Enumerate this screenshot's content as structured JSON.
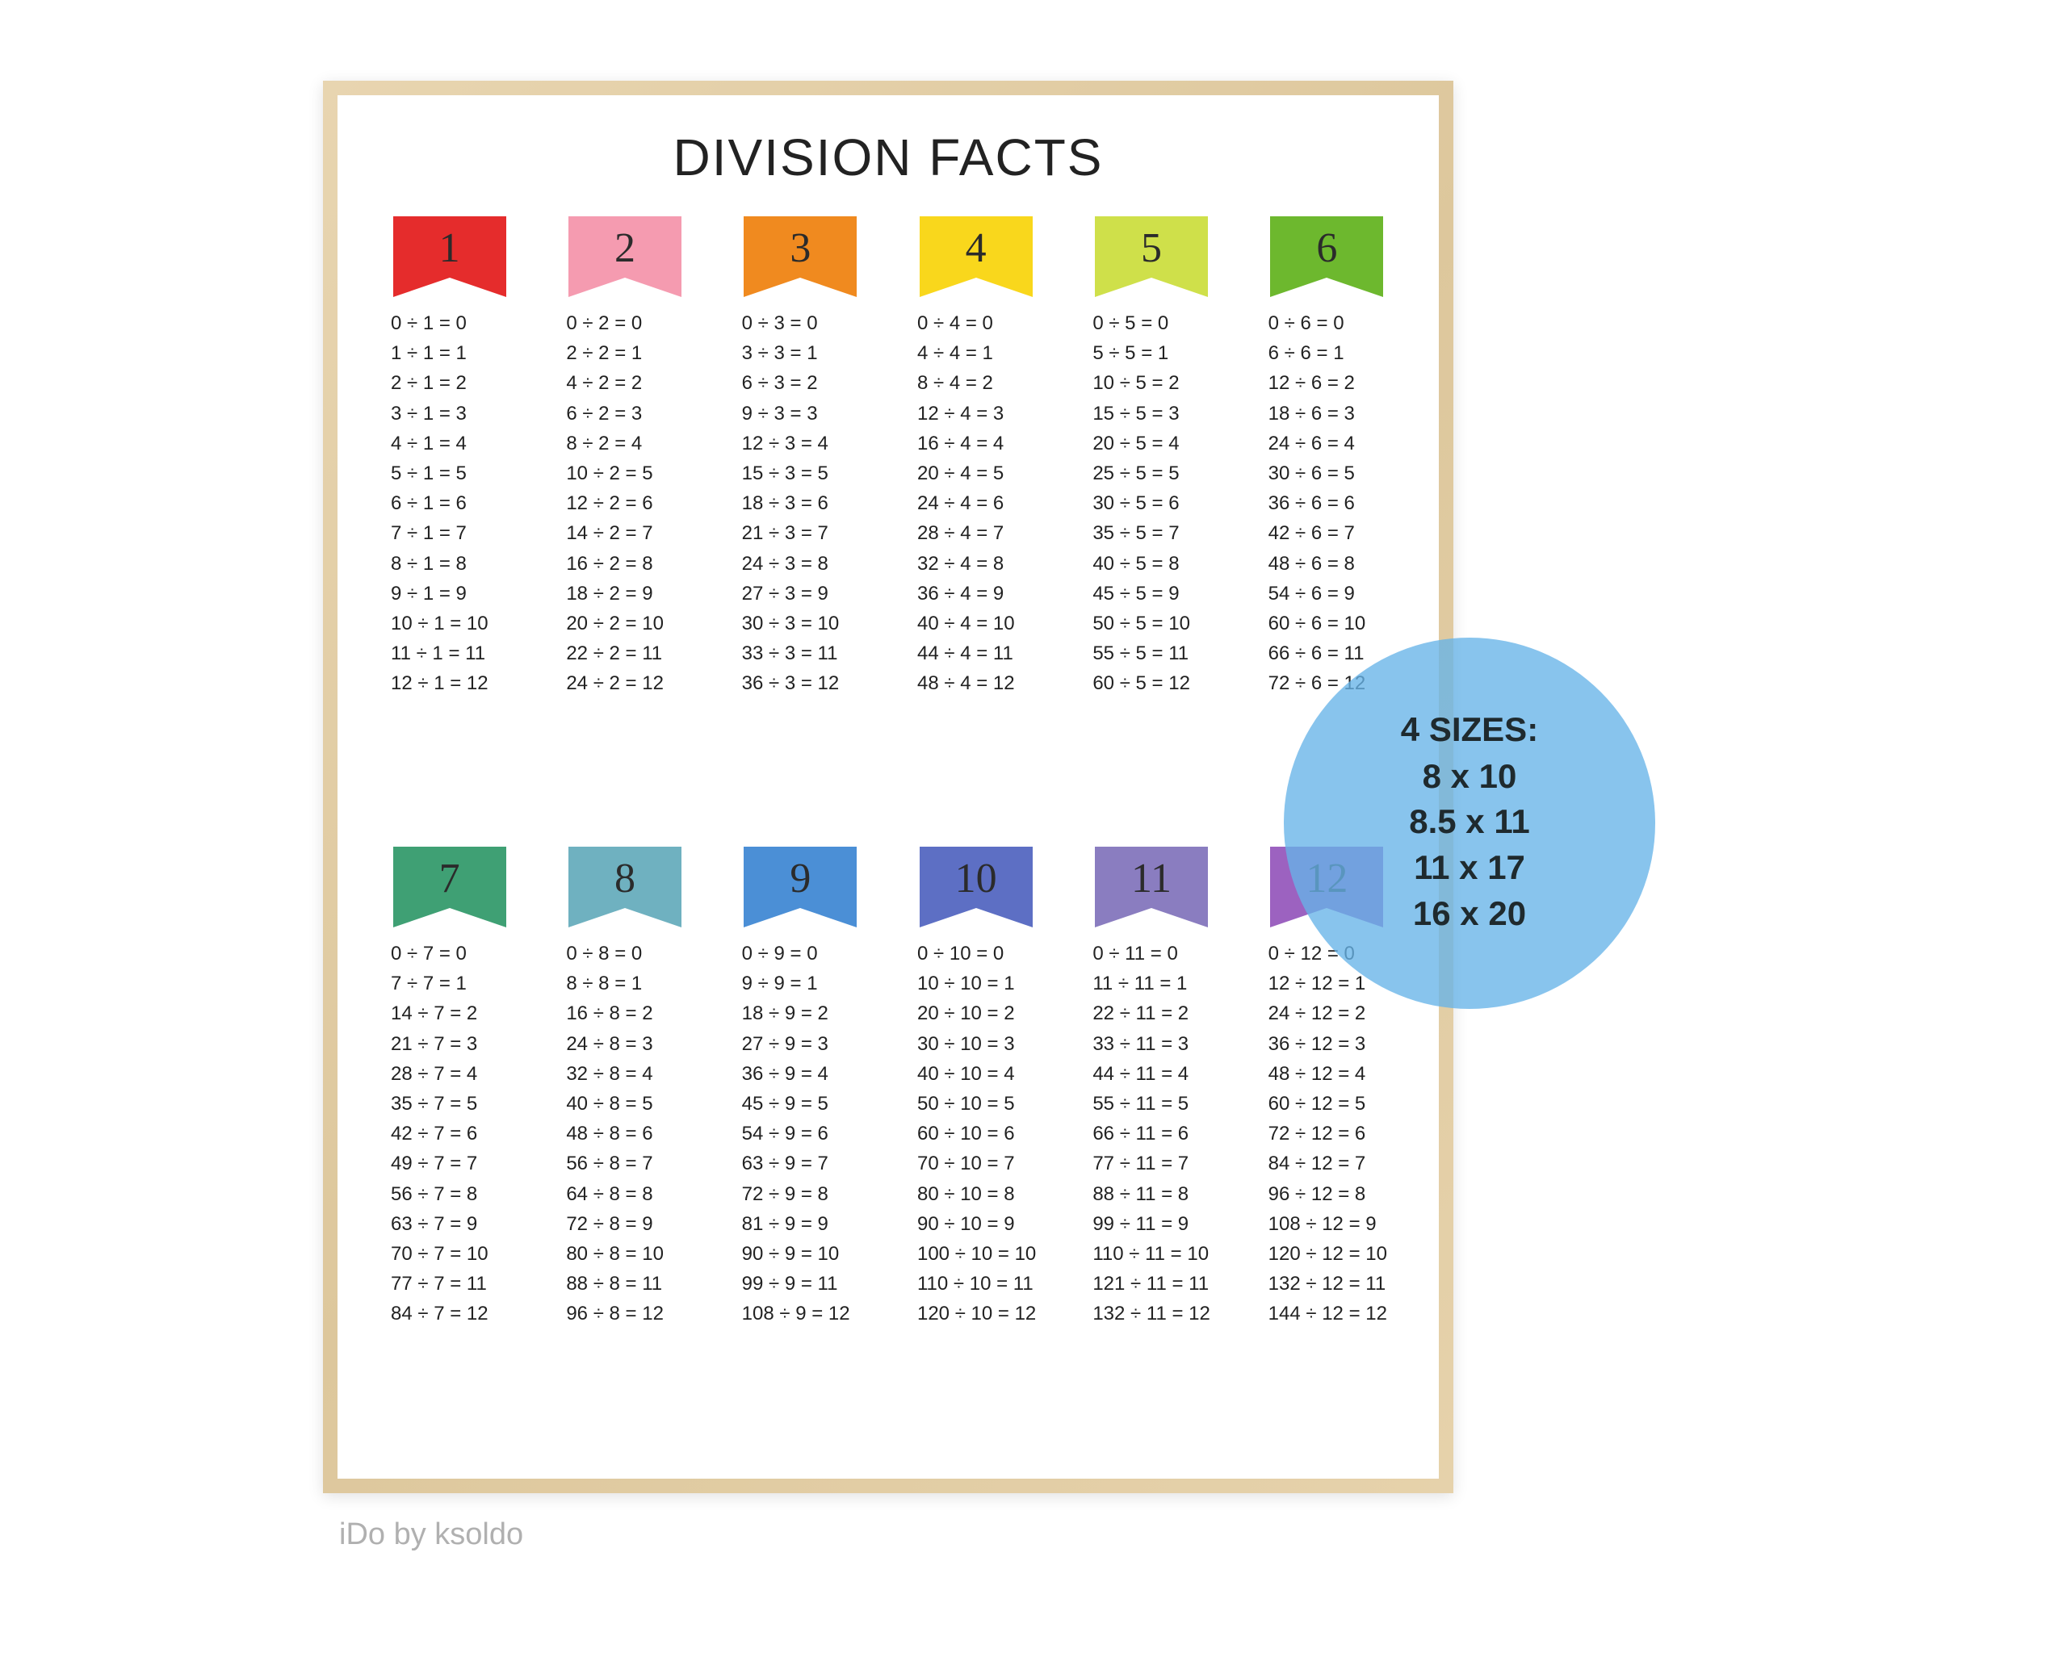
{
  "title": "DIVISION FACTS",
  "attribution": "iDo by ksoldo",
  "badge": {
    "title": "4 SIZES:",
    "lines": [
      "8  x 10",
      "8.5 x 11",
      "11 x 17",
      "16 x 20"
    ],
    "bg_color": "#66b4e8"
  },
  "frame_color": "#e3cda7",
  "banner_colors": [
    "#e52c2c",
    "#f59bb0",
    "#f08a1f",
    "#f9d71c",
    "#cfe04a",
    "#6db82e",
    "#3fa074",
    "#6fb1c0",
    "#4b8fd6",
    "#5d6fc4",
    "#8a7dc0",
    "#9c62c0"
  ],
  "divisors": [
    1,
    2,
    3,
    4,
    5,
    6,
    7,
    8,
    9,
    10,
    11,
    12
  ],
  "results_per_col": 13
}
